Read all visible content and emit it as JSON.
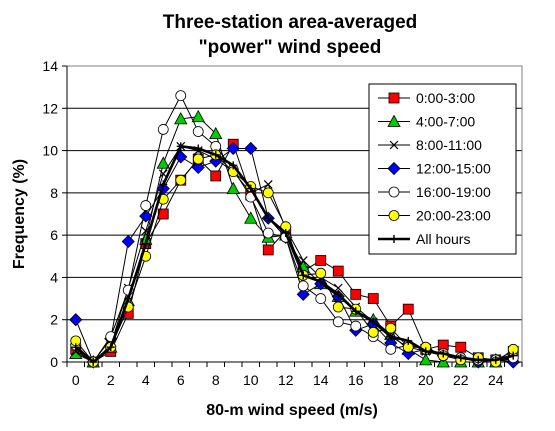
{
  "chart_data": {
    "type": "line",
    "title_line1": "Three-station area-averaged",
    "title_line2": "\"power\" wind speed",
    "xlabel": "80-m wind speed (m/s)",
    "ylabel": "Frequency (%)",
    "xlim": [
      -0.5,
      25.5
    ],
    "ylim": [
      0,
      14
    ],
    "x_ticks": [
      0,
      2,
      4,
      6,
      8,
      10,
      12,
      14,
      16,
      18,
      20,
      22,
      24
    ],
    "y_ticks": [
      0,
      2,
      4,
      6,
      8,
      10,
      12,
      14
    ],
    "grid": "horizontal",
    "legend_position": "top-right",
    "x": [
      0,
      1,
      2,
      3,
      4,
      5,
      6,
      7,
      8,
      9,
      10,
      11,
      12,
      13,
      14,
      15,
      16,
      17,
      18,
      19,
      20,
      21,
      22,
      23,
      24,
      25
    ],
    "series": [
      {
        "name": "0:00-3:00",
        "color": "#ff0000",
        "marker": "square",
        "values": [
          0.6,
          0.0,
          0.5,
          2.3,
          5.6,
          7.0,
          8.6,
          9.6,
          8.8,
          10.3,
          7.9,
          5.3,
          6.2,
          4.3,
          4.8,
          4.3,
          3.2,
          3.0,
          1.7,
          2.5,
          0.6,
          0.8,
          0.7,
          0.2,
          0.1,
          0.5
        ]
      },
      {
        "name": "4:00-7:00",
        "color": "#00cc00",
        "marker": "triangle",
        "values": [
          0.4,
          0.0,
          0.7,
          2.9,
          5.8,
          9.4,
          11.5,
          11.6,
          10.8,
          8.2,
          6.8,
          5.9,
          6.0,
          4.5,
          3.7,
          3.1,
          2.4,
          2.0,
          1.3,
          0.6,
          0.1,
          0.0,
          0.0,
          0.0,
          0.0,
          0.2
        ]
      },
      {
        "name": "8:00-11:00",
        "color": "#000000",
        "marker": "x",
        "values": [
          0.5,
          0.0,
          0.8,
          3.5,
          6.2,
          8.9,
          10.2,
          10.0,
          9.6,
          9.0,
          8.0,
          8.4,
          6.3,
          4.8,
          4.0,
          3.5,
          2.6,
          1.9,
          1.2,
          0.7,
          0.5,
          0.3,
          0.2,
          0.1,
          0.1,
          0.1
        ]
      },
      {
        "name": "12:00-15:00",
        "color": "#0000ff",
        "marker": "diamond",
        "values": [
          2.0,
          0.0,
          1.1,
          5.7,
          6.9,
          8.2,
          9.7,
          9.2,
          9.5,
          10.1,
          10.1,
          6.8,
          5.9,
          3.2,
          3.7,
          3.1,
          1.5,
          1.8,
          0.9,
          0.4,
          0.6,
          0.3,
          0.2,
          0.0,
          0.1,
          0.0
        ]
      },
      {
        "name": "16:00-19:00",
        "color": "#000000",
        "marker": "circle",
        "values": [
          0.8,
          0.0,
          1.2,
          3.4,
          7.4,
          11.0,
          12.6,
          10.9,
          10.2,
          9.1,
          7.8,
          6.1,
          5.9,
          3.6,
          3.0,
          1.9,
          1.7,
          1.2,
          0.6,
          0.8,
          0.6,
          0.4,
          0.2,
          0.1,
          0.1,
          0.2
        ]
      },
      {
        "name": "20:00-23:00",
        "color": "#ffff00",
        "marker": "circle",
        "values": [
          1.0,
          0.0,
          0.7,
          2.6,
          5.0,
          7.7,
          8.6,
          9.6,
          9.8,
          9.0,
          8.3,
          8.0,
          6.4,
          4.1,
          4.2,
          2.6,
          2.5,
          1.4,
          1.6,
          0.7,
          0.7,
          0.3,
          0.1,
          0.2,
          0.0,
          0.6
        ]
      },
      {
        "name": "All hours",
        "color": "#000000",
        "marker": "plus",
        "values": [
          0.7,
          0.0,
          0.7,
          3.0,
          5.6,
          8.4,
          10.2,
          10.1,
          9.8,
          9.3,
          8.2,
          6.8,
          6.1,
          4.1,
          3.8,
          3.2,
          2.4,
          1.9,
          1.2,
          1.0,
          0.5,
          0.4,
          0.2,
          0.1,
          0.1,
          0.3
        ]
      }
    ]
  }
}
